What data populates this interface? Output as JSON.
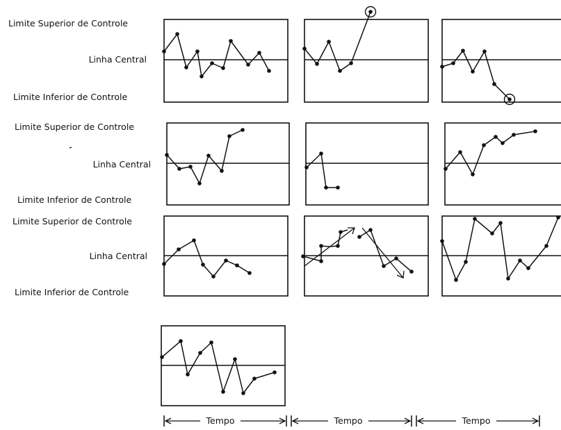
{
  "labels": {
    "upper": "Limite Superior de Controle",
    "center": "Linha Central",
    "lower": "Limite Inferior de Controle"
  },
  "time_label": "Tempo"
}
